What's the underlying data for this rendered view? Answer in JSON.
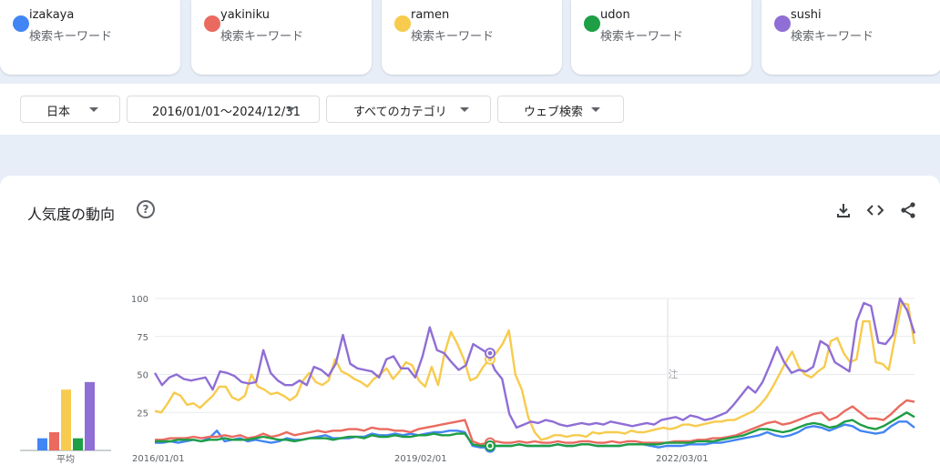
{
  "terms": [
    {
      "name": "izakaya",
      "sub": "検索キーワード",
      "color": "#4285f4"
    },
    {
      "name": "yakiniku",
      "sub": "検索キーワード",
      "color": "#ea6a5f"
    },
    {
      "name": "ramen",
      "sub": "検索キーワード",
      "color": "#f7cb4d"
    },
    {
      "name": "udon",
      "sub": "検索キーワード",
      "color": "#1e9e45"
    },
    {
      "name": "sushi",
      "sub": "検索キーワード",
      "color": "#8f6ed5"
    }
  ],
  "filters": {
    "region": "日本",
    "date_range": "2016/01/01〜2024/12/31",
    "category": "すべてのカテゴリ",
    "search_type": "ウェブ検索"
  },
  "panel": {
    "title": "人気度の動向",
    "help_icon": "help-circle-icon",
    "download_icon": "download-icon",
    "embed_icon": "embed-code-icon",
    "share_icon": "share-icon"
  },
  "chart_data": {
    "type": "line",
    "title": "人気度の動向",
    "ylim": [
      0,
      100
    ],
    "yticks": [
      25,
      50,
      75,
      100
    ],
    "xtick_labels": [
      "2016/01/01",
      "2019/02/01",
      "2022/03/01"
    ],
    "annotation_text": "注",
    "average_label": "平均",
    "averages": [
      {
        "name": "izakaya",
        "value": 8
      },
      {
        "name": "yakiniku",
        "value": 12
      },
      {
        "name": "ramen",
        "value": 40
      },
      {
        "name": "udon",
        "value": 8
      },
      {
        "name": "sushi",
        "value": 45
      }
    ],
    "series": [
      {
        "name": "izakaya",
        "color": "#4285f4",
        "values": [
          5,
          5,
          6,
          5,
          6,
          7,
          6,
          8,
          13,
          6,
          7,
          8,
          6,
          7,
          6,
          5,
          6,
          8,
          7,
          7,
          8,
          9,
          10,
          8,
          8,
          8,
          9,
          9,
          11,
          10,
          10,
          11,
          10,
          11,
          10,
          11,
          12,
          12,
          13,
          13,
          12,
          3,
          2,
          2,
          3,
          3,
          3,
          4,
          3,
          3,
          3,
          3,
          4,
          3,
          3,
          4,
          4,
          3,
          3,
          3,
          3,
          4,
          4,
          4,
          3,
          2,
          3,
          3,
          3,
          4,
          4,
          4,
          5,
          5,
          6,
          7,
          8,
          9,
          10,
          12,
          10,
          9,
          10,
          12,
          15,
          16,
          15,
          13,
          15,
          17,
          16,
          13,
          12,
          11,
          12,
          16,
          19,
          19,
          15
        ]
      },
      {
        "name": "yakiniku",
        "color": "#ea6a5f",
        "values": [
          7,
          7,
          8,
          8,
          8,
          9,
          8,
          9,
          9,
          10,
          9,
          10,
          8,
          9,
          11,
          9,
          10,
          12,
          10,
          11,
          12,
          13,
          12,
          13,
          13,
          14,
          14,
          13,
          15,
          14,
          14,
          13,
          13,
          12,
          14,
          15,
          16,
          17,
          18,
          19,
          20,
          6,
          4,
          5,
          6,
          5,
          5,
          6,
          5,
          6,
          5,
          5,
          6,
          5,
          5,
          6,
          6,
          5,
          5,
          6,
          5,
          6,
          6,
          5,
          5,
          5,
          5,
          6,
          6,
          6,
          7,
          7,
          8,
          8,
          9,
          10,
          12,
          14,
          16,
          18,
          19,
          17,
          18,
          20,
          22,
          24,
          25,
          20,
          22,
          26,
          29,
          25,
          21,
          21,
          20,
          24,
          29,
          33,
          32
        ]
      },
      {
        "name": "ramen",
        "color": "#f7cb4d",
        "values": [
          26,
          25,
          31,
          38,
          36,
          30,
          31,
          28,
          32,
          36,
          42,
          42,
          35,
          33,
          36,
          50,
          42,
          40,
          37,
          38,
          36,
          33,
          36,
          46,
          51,
          45,
          43,
          46,
          60,
          52,
          50,
          47,
          45,
          42,
          47,
          50,
          54,
          47,
          52,
          58,
          56,
          46,
          42,
          55,
          43,
          64,
          78,
          70,
          60,
          46,
          48,
          55,
          60,
          64,
          70,
          79,
          50,
          40,
          22,
          12,
          7,
          8,
          10,
          10,
          9,
          10,
          10,
          9,
          12,
          11,
          12,
          12,
          12,
          11,
          13,
          12,
          12,
          13,
          14,
          15,
          14,
          15,
          17,
          17,
          16,
          17,
          18,
          19,
          19,
          20,
          20,
          22,
          24,
          26,
          30,
          35,
          42,
          50,
          58,
          65,
          55,
          50,
          48,
          52,
          55,
          72,
          74,
          64,
          58,
          60,
          85,
          85,
          58,
          57,
          53,
          75,
          97,
          96,
          70
        ]
      },
      {
        "name": "udon",
        "color": "#1e9e45",
        "values": [
          6,
          6,
          6,
          7,
          7,
          7,
          6,
          7,
          7,
          8,
          7,
          7,
          7,
          8,
          9,
          8,
          7,
          7,
          6,
          7,
          8,
          8,
          8,
          7,
          8,
          9,
          9,
          8,
          10,
          9,
          9,
          10,
          9,
          9,
          10,
          10,
          11,
          10,
          10,
          11,
          11,
          4,
          3,
          3,
          3,
          3,
          3,
          4,
          3,
          3,
          3,
          3,
          4,
          3,
          3,
          4,
          4,
          3,
          3,
          3,
          3,
          4,
          4,
          4,
          4,
          4,
          5,
          5,
          5,
          5,
          6,
          6,
          6,
          7,
          8,
          9,
          10,
          12,
          14,
          14,
          13,
          12,
          13,
          15,
          17,
          18,
          17,
          15,
          16,
          19,
          20,
          17,
          15,
          14,
          16,
          19,
          22,
          25,
          22
        ]
      },
      {
        "name": "sushi",
        "color": "#8f6ed5",
        "values": [
          51,
          43,
          48,
          50,
          47,
          46,
          47,
          48,
          40,
          52,
          51,
          49,
          45,
          44,
          45,
          66,
          51,
          46,
          43,
          43,
          46,
          43,
          55,
          53,
          49,
          57,
          76,
          57,
          54,
          53,
          52,
          48,
          60,
          62,
          54,
          54,
          48,
          62,
          81,
          66,
          64,
          58,
          53,
          56,
          70,
          67,
          64,
          53,
          47,
          24,
          15,
          17,
          19,
          18,
          20,
          19,
          17,
          16,
          17,
          18,
          17,
          18,
          17,
          19,
          18,
          17,
          16,
          17,
          18,
          17,
          20,
          21,
          22,
          20,
          23,
          22,
          20,
          21,
          23,
          25,
          30,
          36,
          42,
          38,
          45,
          56,
          68,
          58,
          51,
          53,
          52,
          55,
          72,
          69,
          58,
          55,
          52,
          85,
          97,
          95,
          71,
          70,
          76,
          100,
          92,
          77
        ]
      }
    ]
  }
}
